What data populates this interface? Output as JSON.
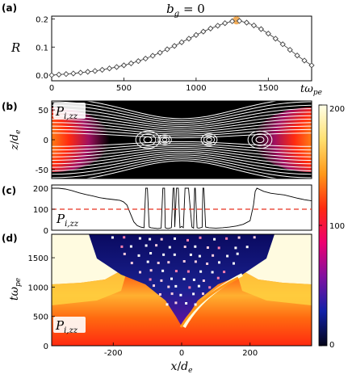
{
  "panel_labels": [
    "(a)",
    "(b)",
    "(c)",
    "(d)"
  ],
  "colors": {
    "diamond_stroke": "#444444",
    "highlight_marker": "#f0a040",
    "dashed_line": "#e83020",
    "field_lines": "#ffffff",
    "panel_b_background": "#000000"
  },
  "colorbar": {
    "ticks": [
      "200",
      "100",
      "0"
    ],
    "tick_values": [
      200,
      100,
      0
    ],
    "range": [
      0,
      200
    ],
    "stops": [
      "#ffffe8",
      "#ffe070",
      "#ff9818",
      "#ff2a10",
      "#ee0070",
      "#8010a0",
      "#1020a8",
      "#040418"
    ]
  },
  "chart_data": [
    {
      "type": "line",
      "panel": "(a)",
      "title": "b_g = 0",
      "title_parts": [
        "b",
        "g",
        " = 0"
      ],
      "ylabel": "R",
      "xlabel_parts": [
        "t",
        "ω",
        "pe"
      ],
      "xlim": [
        0,
        1800
      ],
      "ylim": [
        -0.02,
        0.21
      ],
      "x_ticks": [
        0,
        500,
        1000,
        1500
      ],
      "y_ticks": [
        0.0,
        0.1,
        0.2
      ],
      "y_tick_labels": [
        "0.0",
        "0.1",
        "0.2"
      ],
      "marker": "diamond",
      "highlight": {
        "x": 1280,
        "y": 0.195
      },
      "series": [
        {
          "x": [
            0,
            50,
            100,
            150,
            200,
            250,
            300,
            350,
            400,
            450,
            500,
            550,
            600,
            650,
            700,
            750,
            800,
            850,
            900,
            950,
            1000,
            1050,
            1100,
            1150,
            1200,
            1250,
            1300,
            1350,
            1400,
            1450,
            1500,
            1550,
            1600,
            1650,
            1700,
            1750,
            1800
          ],
          "y": [
            0.0,
            0.002,
            0.004,
            0.006,
            0.009,
            0.012,
            0.015,
            0.019,
            0.024,
            0.029,
            0.035,
            0.042,
            0.05,
            0.059,
            0.069,
            0.08,
            0.092,
            0.104,
            0.117,
            0.13,
            0.143,
            0.155,
            0.166,
            0.176,
            0.185,
            0.192,
            0.193,
            0.187,
            0.177,
            0.164,
            0.148,
            0.13,
            0.11,
            0.09,
            0.07,
            0.052,
            0.035
          ]
        }
      ]
    },
    {
      "type": "heatmap",
      "panel": "(b)",
      "label_parts": [
        "P",
        "i,zz"
      ],
      "ylabel_parts": [
        "z",
        "/",
        "d",
        "e"
      ],
      "ylim": [
        -65,
        65
      ],
      "y_ticks": [
        50,
        0,
        -50
      ],
      "xlim": [
        -380,
        380
      ]
    },
    {
      "type": "line",
      "panel": "(c)",
      "label_parts": [
        "P",
        "i,zz"
      ],
      "ylim": [
        0,
        200
      ],
      "y_ticks": [
        200,
        100,
        0
      ],
      "dashed_level": 100,
      "xlim": [
        -380,
        380
      ],
      "series": [
        {
          "x": [
            -380,
            -360,
            -340,
            -320,
            -300,
            -280,
            -260,
            -240,
            -220,
            -200,
            -180,
            -170,
            -160,
            -150,
            -140,
            -130,
            -120,
            -110,
            -105,
            -100,
            -95,
            -90,
            -80,
            -70,
            -60,
            -55,
            -50,
            -48,
            -45,
            -40,
            -30,
            -25,
            -22,
            -20,
            -15,
            -10,
            -5,
            0,
            5,
            10,
            20,
            30,
            35,
            38,
            40,
            45,
            50,
            60,
            62,
            65,
            70,
            80,
            100,
            120,
            140,
            160,
            180,
            200,
            210,
            215,
            220,
            240,
            260,
            280,
            300,
            320,
            340,
            360,
            380
          ],
          "y": [
            205,
            200,
            196,
            188,
            178,
            170,
            163,
            155,
            150,
            146,
            142,
            135,
            120,
            80,
            40,
            22,
            15,
            12,
            200,
            200,
            15,
            12,
            10,
            8,
            10,
            200,
            200,
            12,
            10,
            8,
            12,
            200,
            200,
            15,
            200,
            200,
            12,
            18,
            12,
            200,
            200,
            15,
            10,
            200,
            200,
            12,
            10,
            14,
            200,
            200,
            15,
            12,
            10,
            12,
            15,
            20,
            28,
            45,
            120,
            185,
            200,
            185,
            176,
            172,
            168,
            160,
            152,
            145,
            140
          ]
        }
      ]
    },
    {
      "type": "heatmap",
      "panel": "(d)",
      "label_parts": [
        "P",
        "i,zz"
      ],
      "xlabel_parts": [
        "x",
        "/",
        "d",
        "e"
      ],
      "ylabel_parts": [
        "t",
        "ω",
        "pe"
      ],
      "xlim": [
        -380,
        380
      ],
      "ylim": [
        0,
        1900
      ],
      "x_ticks": [
        -200,
        0,
        200
      ],
      "x_tick_labels": [
        "-200",
        "0",
        "200"
      ],
      "y_ticks": [
        0,
        500,
        1000,
        1500
      ],
      "y_tick_labels": [
        "0",
        "500",
        "1000",
        "1500"
      ]
    }
  ]
}
